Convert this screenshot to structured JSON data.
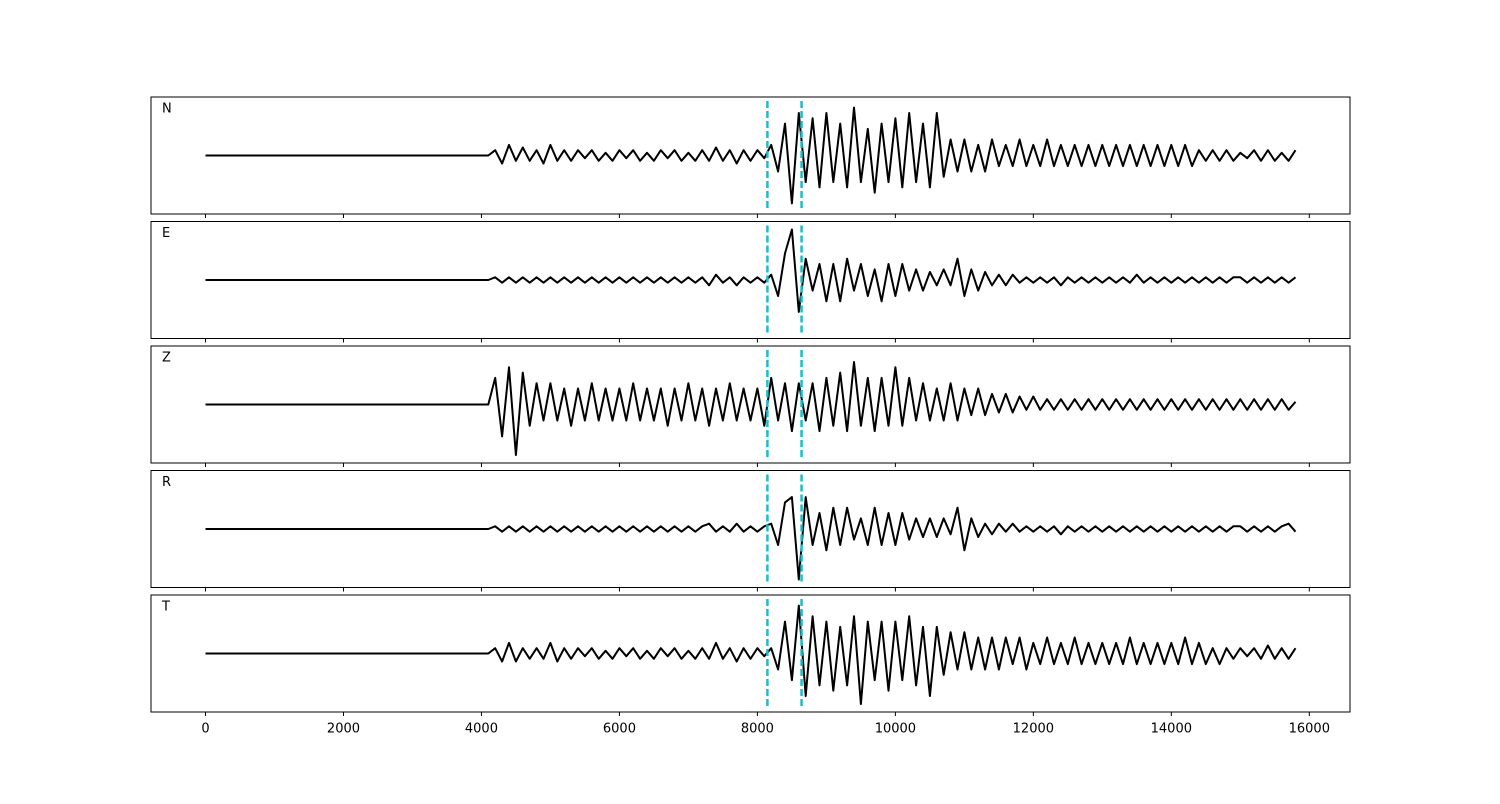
{
  "chart_data": {
    "type": "line",
    "x": [
      0,
      100,
      200,
      300,
      400,
      500,
      600,
      700,
      800,
      900,
      1000,
      1100,
      1200,
      1300,
      1400,
      1500,
      1600,
      1700,
      1800,
      1900,
      2000,
      2100,
      2200,
      2300,
      2400,
      2500,
      2600,
      2700,
      2800,
      2900,
      3000,
      3100,
      3200,
      3300,
      3400,
      3500,
      3600,
      3700,
      3800,
      3900,
      4000,
      4100,
      4200,
      4300,
      4400,
      4500,
      4600,
      4700,
      4800,
      4900,
      5000,
      5100,
      5200,
      5300,
      5400,
      5500,
      5600,
      5700,
      5800,
      5900,
      6000,
      6100,
      6200,
      6300,
      6400,
      6500,
      6600,
      6700,
      6800,
      6900,
      7000,
      7100,
      7200,
      7300,
      7400,
      7500,
      7600,
      7700,
      7800,
      7900,
      8000,
      8100,
      8200,
      8300,
      8400,
      8500,
      8600,
      8700,
      8800,
      8900,
      9000,
      9100,
      9200,
      9300,
      9400,
      9500,
      9600,
      9700,
      9800,
      9900,
      10000,
      10100,
      10200,
      10300,
      10400,
      10500,
      10600,
      10700,
      10800,
      10900,
      11000,
      11100,
      11200,
      11300,
      11400,
      11500,
      11600,
      11700,
      11800,
      11900,
      12000,
      12100,
      12200,
      12300,
      12400,
      12500,
      12600,
      12700,
      12800,
      12900,
      13000,
      13100,
      13200,
      13300,
      13400,
      13500,
      13600,
      13700,
      13800,
      13900,
      14000,
      14100,
      14200,
      14300,
      14400,
      14500,
      14600,
      14700,
      14800,
      14900,
      15000,
      15100,
      15200,
      15300,
      15400,
      15500,
      15600,
      15700,
      15800
    ],
    "series": [
      {
        "name": "N",
        "color": "#000000",
        "values": [
          0,
          0,
          0,
          0,
          0,
          0,
          0,
          0,
          0,
          0,
          0,
          0,
          0,
          0,
          0,
          0,
          0,
          0,
          0,
          0,
          0,
          0,
          0,
          0,
          0,
          0,
          0,
          0,
          0,
          0,
          0,
          0,
          0,
          0,
          0,
          0,
          0,
          0,
          0,
          0,
          0,
          0,
          0.1,
          -0.15,
          0.2,
          -0.1,
          0.15,
          -0.1,
          0.1,
          -0.15,
          0.2,
          -0.1,
          0.1,
          -0.1,
          0.1,
          -0.05,
          0.1,
          -0.1,
          0.05,
          -0.1,
          0.1,
          -0.05,
          0.1,
          -0.1,
          0.05,
          -0.1,
          0.1,
          -0.05,
          0.1,
          -0.1,
          0.05,
          -0.1,
          0.1,
          -0.1,
          0.15,
          -0.1,
          0.1,
          -0.15,
          0.1,
          -0.1,
          0.1,
          -0.05,
          0.2,
          -0.3,
          0.6,
          -0.9,
          0.8,
          -0.5,
          0.7,
          -0.6,
          0.8,
          -0.5,
          0.6,
          -0.6,
          0.9,
          -0.5,
          0.5,
          -0.7,
          0.6,
          -0.5,
          0.7,
          -0.6,
          0.8,
          -0.5,
          0.6,
          -0.6,
          0.8,
          -0.4,
          0.3,
          -0.3,
          0.3,
          -0.3,
          0.2,
          -0.3,
          0.3,
          -0.2,
          0.2,
          -0.2,
          0.3,
          -0.2,
          0.2,
          -0.2,
          0.3,
          -0.2,
          0.2,
          -0.2,
          0.2,
          -0.2,
          0.2,
          -0.2,
          0.2,
          -0.2,
          0.2,
          -0.2,
          0.2,
          -0.2,
          0.2,
          -0.2,
          0.2,
          -0.2,
          0.2,
          -0.2,
          0.2,
          -0.2,
          0.1,
          -0.1,
          0.1,
          -0.1,
          0.1,
          -0.1,
          0.05,
          -0.05,
          0.1,
          -0.1,
          0.1,
          -0.1,
          0.05,
          -0.1,
          0.1
        ]
      },
      {
        "name": "E",
        "color": "#000000",
        "values": [
          0,
          0,
          0,
          0,
          0,
          0,
          0,
          0,
          0,
          0,
          0,
          0,
          0,
          0,
          0,
          0,
          0,
          0,
          0,
          0,
          0,
          0,
          0,
          0,
          0,
          0,
          0,
          0,
          0,
          0,
          0,
          0,
          0,
          0,
          0,
          0,
          0,
          0,
          0,
          0,
          0,
          0,
          0.05,
          -0.05,
          0.05,
          -0.05,
          0.05,
          -0.05,
          0.05,
          -0.05,
          0.05,
          -0.05,
          0.05,
          -0.05,
          0.05,
          -0.05,
          0.05,
          -0.05,
          0.05,
          -0.05,
          0.05,
          -0.05,
          0.05,
          -0.05,
          0.05,
          -0.05,
          0.05,
          -0.05,
          0.05,
          -0.05,
          0.05,
          -0.05,
          0.05,
          -0.1,
          0.1,
          -0.05,
          0.05,
          -0.1,
          0.05,
          -0.05,
          0.05,
          -0.05,
          0.1,
          -0.3,
          0.5,
          0.95,
          -0.6,
          0.4,
          -0.2,
          0.3,
          -0.4,
          0.3,
          -0.4,
          0.4,
          -0.2,
          0.3,
          -0.3,
          0.2,
          -0.4,
          0.3,
          -0.3,
          0.3,
          -0.2,
          0.2,
          -0.2,
          0.15,
          -0.1,
          0.2,
          -0.1,
          0.4,
          -0.3,
          0.2,
          -0.2,
          0.15,
          -0.1,
          0.1,
          -0.1,
          0.1,
          -0.05,
          0.05,
          -0.05,
          0.05,
          -0.05,
          0.05,
          -0.1,
          0.05,
          -0.05,
          0.05,
          -0.05,
          0.05,
          -0.05,
          0.05,
          -0.05,
          0.05,
          -0.05,
          0.1,
          -0.05,
          0.05,
          -0.05,
          0.05,
          -0.05,
          0.05,
          -0.05,
          0.05,
          -0.05,
          0.05,
          -0.05,
          0.05,
          -0.05,
          0.05,
          0.05,
          -0.05,
          0.05,
          -0.05,
          0.05,
          -0.05,
          0.05,
          -0.05,
          0.05
        ]
      },
      {
        "name": "Z",
        "color": "#000000",
        "values": [
          0,
          0,
          0,
          0,
          0,
          0,
          0,
          0,
          0,
          0,
          0,
          0,
          0,
          0,
          0,
          0,
          0,
          0,
          0,
          0,
          0,
          0,
          0,
          0,
          0,
          0,
          0,
          0,
          0,
          0,
          0,
          0,
          0,
          0,
          0,
          0,
          0,
          0,
          0,
          0,
          0,
          0,
          0.5,
          -0.6,
          0.7,
          -0.95,
          0.6,
          -0.4,
          0.4,
          -0.3,
          0.4,
          -0.3,
          0.3,
          -0.4,
          0.3,
          -0.3,
          0.4,
          -0.3,
          0.3,
          -0.3,
          0.3,
          -0.3,
          0.4,
          -0.3,
          0.3,
          -0.3,
          0.3,
          -0.4,
          0.3,
          -0.3,
          0.4,
          -0.3,
          0.3,
          -0.4,
          0.3,
          -0.3,
          0.4,
          -0.3,
          0.3,
          -0.3,
          0.3,
          -0.4,
          0.5,
          -0.3,
          0.4,
          -0.5,
          0.4,
          -0.3,
          0.4,
          -0.5,
          0.5,
          -0.4,
          0.6,
          -0.5,
          0.8,
          -0.4,
          0.5,
          -0.5,
          0.5,
          -0.4,
          0.7,
          -0.4,
          0.5,
          -0.3,
          0.4,
          -0.3,
          0.3,
          -0.3,
          0.4,
          -0.3,
          0.3,
          -0.2,
          0.3,
          -0.2,
          0.2,
          -0.15,
          0.2,
          -0.15,
          0.15,
          -0.1,
          0.15,
          -0.1,
          0.1,
          -0.1,
          0.1,
          -0.1,
          0.1,
          -0.1,
          0.1,
          -0.1,
          0.1,
          -0.1,
          0.1,
          -0.1,
          0.1,
          -0.1,
          0.1,
          -0.1,
          0.1,
          -0.1,
          0.1,
          -0.1,
          0.1,
          -0.1,
          0.1,
          -0.1,
          0.1,
          -0.1,
          0.1,
          -0.1,
          0.1,
          -0.1,
          0.1,
          -0.1,
          0.1,
          -0.1,
          0.1,
          -0.1,
          0.05
        ]
      },
      {
        "name": "R",
        "color": "#000000",
        "values": [
          0,
          0,
          0,
          0,
          0,
          0,
          0,
          0,
          0,
          0,
          0,
          0,
          0,
          0,
          0,
          0,
          0,
          0,
          0,
          0,
          0,
          0,
          0,
          0,
          0,
          0,
          0,
          0,
          0,
          0,
          0,
          0,
          0,
          0,
          0,
          0,
          0,
          0,
          0,
          0,
          0,
          0,
          0.05,
          -0.05,
          0.05,
          -0.05,
          0.05,
          -0.05,
          0.05,
          -0.05,
          0.05,
          -0.05,
          0.05,
          -0.05,
          0.05,
          -0.05,
          0.05,
          -0.05,
          0.05,
          -0.05,
          0.05,
          -0.05,
          0.05,
          -0.05,
          0.05,
          -0.05,
          0.05,
          -0.05,
          0.05,
          -0.05,
          0.05,
          -0.05,
          0.05,
          0.1,
          -0.05,
          0.05,
          -0.05,
          0.1,
          -0.05,
          0.05,
          -0.05,
          0.05,
          0.1,
          -0.3,
          0.5,
          0.6,
          -0.95,
          0.6,
          -0.3,
          0.3,
          -0.4,
          0.4,
          -0.3,
          0.4,
          -0.2,
          0.2,
          -0.3,
          0.4,
          -0.3,
          0.3,
          -0.3,
          0.3,
          -0.2,
          0.2,
          -0.15,
          0.2,
          -0.15,
          0.2,
          -0.1,
          0.4,
          -0.4,
          0.2,
          -0.15,
          0.1,
          -0.1,
          0.1,
          -0.05,
          0.1,
          -0.05,
          0.05,
          -0.05,
          0.05,
          -0.05,
          0.05,
          -0.1,
          0.05,
          -0.05,
          0.05,
          -0.05,
          0.05,
          -0.05,
          0.05,
          -0.05,
          0.05,
          -0.05,
          0.05,
          -0.05,
          0.05,
          -0.05,
          0.05,
          -0.05,
          0.05,
          -0.05,
          0.05,
          -0.05,
          0.05,
          -0.05,
          0.05,
          -0.05,
          0.05,
          0.05,
          -0.05,
          0.05,
          -0.05,
          0.05,
          -0.05,
          0.05,
          0.1,
          -0.05
        ]
      },
      {
        "name": "T",
        "color": "#000000",
        "values": [
          0,
          0,
          0,
          0,
          0,
          0,
          0,
          0,
          0,
          0,
          0,
          0,
          0,
          0,
          0,
          0,
          0,
          0,
          0,
          0,
          0,
          0,
          0,
          0,
          0,
          0,
          0,
          0,
          0,
          0,
          0,
          0,
          0,
          0,
          0,
          0,
          0,
          0,
          0,
          0,
          0,
          0,
          0.1,
          -0.15,
          0.2,
          -0.15,
          0.1,
          -0.1,
          0.1,
          -0.1,
          0.2,
          -0.15,
          0.1,
          -0.1,
          0.1,
          -0.05,
          0.1,
          -0.1,
          0.05,
          -0.1,
          0.1,
          -0.05,
          0.1,
          -0.1,
          0.05,
          -0.1,
          0.1,
          -0.05,
          0.1,
          -0.1,
          0.05,
          -0.1,
          0.1,
          -0.1,
          0.2,
          -0.1,
          0.1,
          -0.15,
          0.1,
          -0.1,
          0.1,
          -0.05,
          0.1,
          -0.3,
          0.6,
          -0.5,
          0.9,
          -0.8,
          0.7,
          -0.6,
          0.6,
          -0.7,
          0.5,
          -0.6,
          0.7,
          -0.95,
          0.6,
          -0.5,
          0.6,
          -0.7,
          0.6,
          -0.5,
          0.7,
          -0.6,
          0.5,
          -0.8,
          0.5,
          -0.4,
          0.4,
          -0.3,
          0.4,
          -0.3,
          0.3,
          -0.3,
          0.3,
          -0.3,
          0.3,
          -0.2,
          0.3,
          -0.3,
          0.2,
          -0.2,
          0.3,
          -0.2,
          0.2,
          -0.2,
          0.3,
          -0.2,
          0.2,
          -0.2,
          0.2,
          -0.2,
          0.2,
          -0.2,
          0.3,
          -0.2,
          0.2,
          -0.2,
          0.2,
          -0.2,
          0.2,
          -0.2,
          0.3,
          -0.2,
          0.2,
          -0.2,
          0.1,
          -0.2,
          0.1,
          -0.1,
          0.1,
          -0.05,
          0.1,
          -0.1,
          0.15,
          -0.1,
          0.1,
          -0.1,
          0.1
        ]
      }
    ],
    "xlim": [
      -790,
      16590
    ],
    "xticks": [
      0,
      2000,
      4000,
      6000,
      8000,
      10000,
      12000,
      14000,
      16000
    ],
    "ylim": [
      -1.1,
      1.1
    ],
    "vlines": [
      8145,
      8640
    ],
    "vline_color": "#17becf"
  }
}
